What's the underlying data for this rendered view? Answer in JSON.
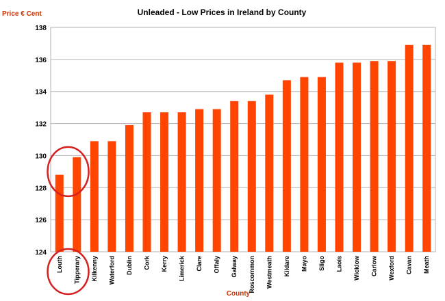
{
  "chart_data": {
    "type": "bar",
    "title": "Unleaded - Low Prices in Ireland by County",
    "xlabel": "County",
    "ylabel": "Price € Cent",
    "ylim": [
      124,
      138
    ],
    "yticks": [
      124,
      126,
      128,
      130,
      132,
      134,
      136,
      138
    ],
    "grid": true,
    "legend": "none",
    "categories": [
      "Louth",
      "Tipperary",
      "Kilkenny",
      "Waterford",
      "Dublin",
      "Cork",
      "Kerry",
      "Limerick",
      "Clare",
      "Offaly",
      "Galway",
      "Roscommon",
      "Westmeath",
      "Kildare",
      "Mayo",
      "Sligo",
      "Laois",
      "Wicklow",
      "Carlow",
      "Wexford",
      "Cavan",
      "Meath"
    ],
    "values": [
      128.8,
      129.9,
      130.9,
      130.9,
      131.9,
      132.7,
      132.7,
      132.7,
      132.9,
      132.9,
      133.4,
      133.4,
      133.8,
      134.7,
      134.9,
      134.9,
      135.8,
      135.8,
      135.9,
      135.9,
      136.9,
      136.9
    ],
    "annotations": [
      "circle around Louth and Tipperary bars",
      "circle around Louth and Tipperary labels"
    ],
    "colors": {
      "bar": "#ff4500",
      "grid": "#b3b3b3",
      "axis_label": "#cc3300",
      "annotation": "#d62020"
    }
  }
}
